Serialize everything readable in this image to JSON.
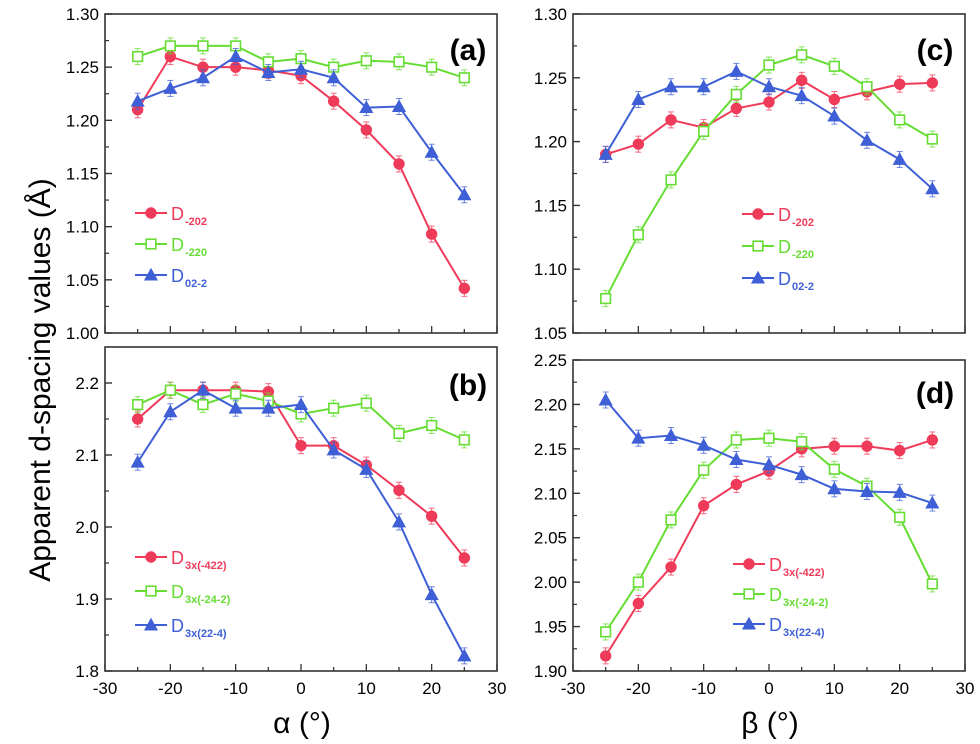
{
  "figure": {
    "ylabel": "Apparent  d-spacing values (Å)",
    "xlabel_left": "α (°)",
    "xlabel_right": "β (°)"
  },
  "colors": {
    "red": "#ef3b5a",
    "green": "#66dd33",
    "blue": "#3e5fd6"
  },
  "chart_data": [
    {
      "id": "a",
      "panel_label": "(a)",
      "type": "line",
      "xlim": [
        -30,
        30
      ],
      "ylim": [
        1.0,
        1.3
      ],
      "xticks": [],
      "yticks": [
        1.0,
        1.05,
        1.1,
        1.15,
        1.2,
        1.25,
        1.3
      ],
      "ytick_labels": [
        "1.00",
        "1.05",
        "1.10",
        "1.15",
        "1.20",
        "1.25",
        "1.30"
      ],
      "legend_position": "middle-left",
      "x": [
        -25,
        -20,
        -15,
        -10,
        -5,
        0,
        5,
        10,
        15,
        20,
        25
      ],
      "series": [
        {
          "name": "D",
          "sub": "-202",
          "color": "red",
          "marker": "circle",
          "values": [
            1.21,
            1.26,
            1.25,
            1.25,
            1.247,
            1.242,
            1.218,
            1.191,
            1.159,
            1.093,
            1.042
          ]
        },
        {
          "name": "D",
          "sub": "-220",
          "color": "green",
          "marker": "open-square",
          "values": [
            1.26,
            1.27,
            1.27,
            1.27,
            1.255,
            1.258,
            1.25,
            1.256,
            1.255,
            1.25,
            1.24
          ]
        },
        {
          "name": "D",
          "sub": "02-2",
          "color": "blue",
          "marker": "triangle",
          "values": [
            1.218,
            1.23,
            1.24,
            1.26,
            1.245,
            1.248,
            1.24,
            1.212,
            1.213,
            1.17,
            1.13
          ]
        }
      ]
    },
    {
      "id": "b",
      "panel_label": "(b)",
      "type": "line",
      "xlim": [
        -30,
        30
      ],
      "ylim": [
        1.8,
        2.25
      ],
      "xticks": [
        -30,
        -20,
        -10,
        0,
        10,
        20,
        30
      ],
      "xtick_labels": [
        "-30",
        "-20",
        "-10",
        "0",
        "10",
        "20",
        "30"
      ],
      "yticks": [
        1.8,
        1.9,
        2.0,
        2.1,
        2.2
      ],
      "ytick_labels": [
        "1.8",
        "1.9",
        "2.0",
        "2.1",
        "2.2"
      ],
      "legend_position": "bottom-left",
      "x": [
        -25,
        -20,
        -15,
        -10,
        -5,
        0,
        5,
        10,
        15,
        20,
        25
      ],
      "series": [
        {
          "name": "D",
          "sub": "3x(-422)",
          "color": "red",
          "marker": "circle",
          "values": [
            2.15,
            2.19,
            2.19,
            2.19,
            2.188,
            2.113,
            2.113,
            2.086,
            2.051,
            2.015,
            1.957
          ]
        },
        {
          "name": "D",
          "sub": "3x(-24-2)",
          "color": "green",
          "marker": "open-square",
          "values": [
            2.17,
            2.19,
            2.17,
            2.185,
            2.175,
            2.157,
            2.165,
            2.172,
            2.13,
            2.141,
            2.121
          ]
        },
        {
          "name": "D",
          "sub": "3x(22-4)",
          "color": "blue",
          "marker": "triangle",
          "values": [
            2.09,
            2.16,
            2.19,
            2.165,
            2.165,
            2.17,
            2.107,
            2.08,
            2.007,
            1.906,
            1.821
          ]
        }
      ]
    },
    {
      "id": "c",
      "panel_label": "(c)",
      "type": "line",
      "xlim": [
        -30,
        30
      ],
      "ylim": [
        1.05,
        1.3
      ],
      "xticks": [],
      "yticks": [
        1.05,
        1.1,
        1.15,
        1.2,
        1.25,
        1.3
      ],
      "ytick_labels": [
        "1.05",
        "1.10",
        "1.15",
        "1.20",
        "1.25",
        "1.30"
      ],
      "legend_position": "middle-right",
      "x": [
        -25,
        -20,
        -15,
        -10,
        -5,
        0,
        5,
        10,
        15,
        20,
        25
      ],
      "series": [
        {
          "name": "D",
          "sub": "-202",
          "color": "red",
          "marker": "circle",
          "values": [
            1.19,
            1.198,
            1.217,
            1.211,
            1.226,
            1.231,
            1.248,
            1.233,
            1.239,
            1.245,
            1.246
          ]
        },
        {
          "name": "D",
          "sub": "-220",
          "color": "green",
          "marker": "open-square",
          "values": [
            1.077,
            1.127,
            1.17,
            1.208,
            1.237,
            1.26,
            1.268,
            1.259,
            1.243,
            1.217,
            1.202
          ]
        },
        {
          "name": "D",
          "sub": "02-2",
          "color": "blue",
          "marker": "triangle",
          "values": [
            1.19,
            1.233,
            1.243,
            1.243,
            1.255,
            1.243,
            1.236,
            1.22,
            1.201,
            1.186,
            1.163
          ]
        }
      ]
    },
    {
      "id": "d",
      "panel_label": "(d)",
      "type": "line",
      "xlim": [
        -30,
        30
      ],
      "ylim": [
        1.9,
        2.25
      ],
      "xticks": [
        -30,
        -20,
        -10,
        0,
        10,
        20,
        30
      ],
      "xtick_labels": [
        "-30",
        "-20",
        "-10",
        "0",
        "10",
        "20",
        "30"
      ],
      "yticks": [
        1.9,
        1.95,
        2.0,
        2.05,
        2.1,
        2.15,
        2.2,
        2.25
      ],
      "ytick_labels": [
        "1.90",
        "1.95",
        "2.00",
        "2.05",
        "2.10",
        "2.15",
        "2.20",
        "2.25"
      ],
      "legend_position": "bottom-center",
      "x": [
        -25,
        -20,
        -15,
        -10,
        -5,
        0,
        5,
        10,
        15,
        20,
        25
      ],
      "series": [
        {
          "name": "D",
          "sub": "3x(-422)",
          "color": "red",
          "marker": "circle",
          "values": [
            1.917,
            1.976,
            2.017,
            2.086,
            2.11,
            2.125,
            2.15,
            2.153,
            2.153,
            2.148,
            2.16
          ]
        },
        {
          "name": "D",
          "sub": "3x(-24-2)",
          "color": "green",
          "marker": "open-square",
          "values": [
            1.944,
            2.0,
            2.07,
            2.126,
            2.16,
            2.162,
            2.158,
            2.127,
            2.108,
            2.073,
            1.998
          ]
        },
        {
          "name": "D",
          "sub": "3x(22-4)",
          "color": "blue",
          "marker": "triangle",
          "values": [
            2.205,
            2.162,
            2.165,
            2.154,
            2.138,
            2.132,
            2.121,
            2.105,
            2.102,
            2.101,
            2.089
          ]
        }
      ]
    }
  ]
}
